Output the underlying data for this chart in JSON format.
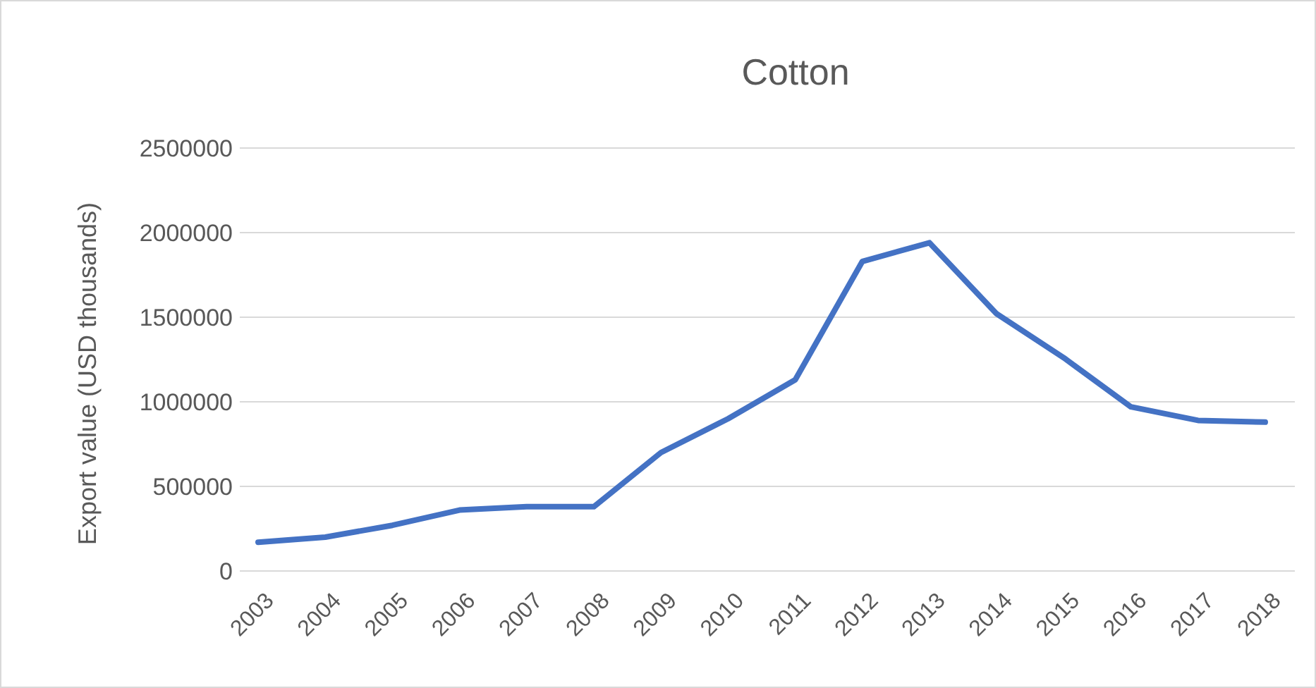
{
  "chart_data": {
    "type": "line",
    "title": "Cotton",
    "ylabel": "Export value (USD thousands)",
    "categories": [
      "2003",
      "2004",
      "2005",
      "2006",
      "2007",
      "2008",
      "2009",
      "2010",
      "2011",
      "2012",
      "2013",
      "2014",
      "2015",
      "2016",
      "2017",
      "2018"
    ],
    "series": [
      {
        "color": "#4472c4",
        "values": [
          170000,
          200000,
          270000,
          360000,
          380000,
          380000,
          700000,
          900000,
          1130000,
          1830000,
          1940000,
          1520000,
          1260000,
          970000,
          890000,
          880000
        ]
      }
    ],
    "ylim": [
      0,
      2500000
    ],
    "yticks": [
      0,
      500000,
      1000000,
      1500000,
      2000000,
      2500000
    ],
    "grid": "y",
    "line_style": "solid"
  }
}
